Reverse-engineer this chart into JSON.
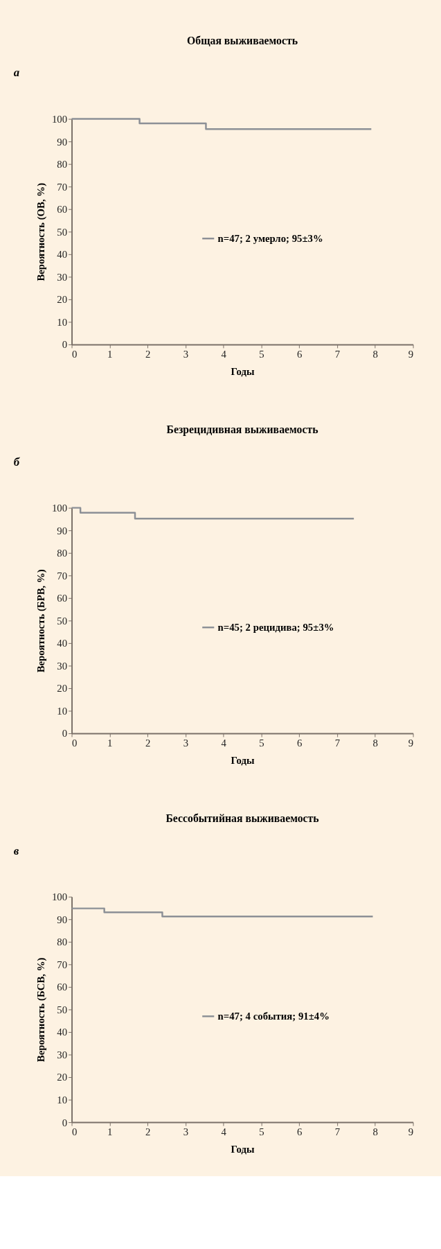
{
  "chart_data": [
    {
      "type": "step",
      "title": "Общая выживаемость",
      "xlabel": "Годы",
      "ylabel": "Вероятность (ОВ, %)",
      "annotations": [
        "а"
      ],
      "xlim": [
        0,
        9
      ],
      "xticks": [
        0,
        1,
        2,
        3,
        4,
        5,
        6,
        7,
        8,
        9
      ],
      "ylim": [
        0,
        100
      ],
      "yticks": [
        0,
        10,
        20,
        30,
        40,
        50,
        60,
        70,
        80,
        90,
        100
      ],
      "legend": "right",
      "series": [
        {
          "name": "n=47; 2 умерло; 95±3%",
          "color": "#8c9096",
          "x": [
            0,
            1.79,
            3.54,
            7.9
          ],
          "values": [
            100,
            98,
            95.5,
            95.5
          ]
        }
      ]
    },
    {
      "type": "step",
      "title": "Безрецидивная выживаемость",
      "xlabel": "Годы",
      "ylabel": "Вероятность (БРВ, %)",
      "annotations": [
        "б"
      ],
      "xlim": [
        0,
        9
      ],
      "xticks": [
        0,
        1,
        2,
        3,
        4,
        5,
        6,
        7,
        8,
        9
      ],
      "ylim": [
        0,
        100
      ],
      "yticks": [
        0,
        10,
        20,
        30,
        40,
        50,
        60,
        70,
        80,
        90,
        100
      ],
      "legend": "right",
      "series": [
        {
          "name": "n=45; 2 рецидива; 95±3%",
          "color": "#8c9096",
          "x": [
            0,
            0.23,
            1.67,
            7.44
          ],
          "values": [
            100,
            97.8,
            95.2,
            95.2
          ]
        }
      ]
    },
    {
      "type": "step",
      "title": "Бессобытийная выживаемость",
      "xlabel": "Годы",
      "ylabel": "Вероятность (БСВ, %)",
      "annotations": [
        "в"
      ],
      "xlim": [
        0,
        9
      ],
      "xticks": [
        0,
        1,
        2,
        3,
        4,
        5,
        6,
        7,
        8,
        9
      ],
      "ylim": [
        0,
        100
      ],
      "yticks": [
        0,
        10,
        20,
        30,
        40,
        50,
        60,
        70,
        80,
        90,
        100
      ],
      "legend": "right",
      "series": [
        {
          "name": "n=47; 4 события; 91±4%",
          "color": "#8c9096",
          "x": [
            0,
            0.86,
            2.39,
            7.94
          ],
          "values": [
            94.8,
            93.1,
            91.2,
            91.2
          ]
        }
      ]
    }
  ]
}
